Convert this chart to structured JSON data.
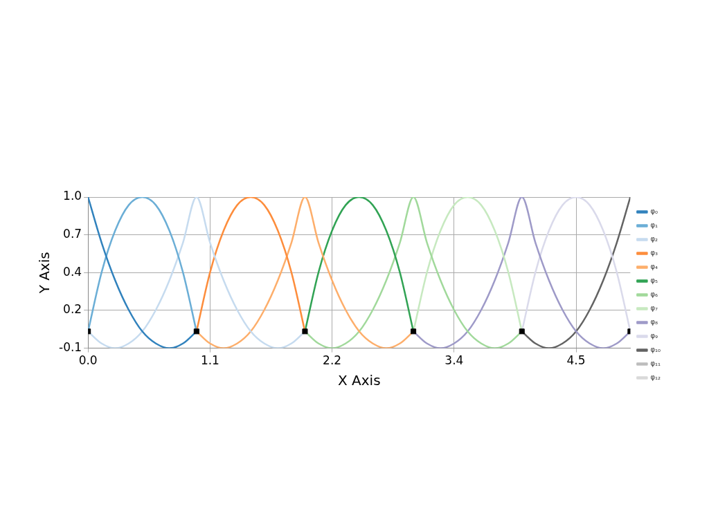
{
  "chart_data": {
    "type": "line",
    "xlabel": "X Axis",
    "ylabel": "Y Axis",
    "xlim": [
      0,
      5
    ],
    "xticks": [
      {
        "value": 0,
        "label": "0.0"
      },
      {
        "value": 1.125,
        "label": "1.1"
      },
      {
        "value": 2.25,
        "label": "2.2"
      },
      {
        "value": 3.375,
        "label": "3.4"
      },
      {
        "value": 4.5,
        "label": "4.5"
      }
    ],
    "ylim": [
      -0.125,
      1
    ],
    "yticks": [
      {
        "value": -0.125,
        "label": "-0.1"
      },
      {
        "value": 0.15625,
        "label": "0.2"
      },
      {
        "value": 0.4375,
        "label": "0.4"
      },
      {
        "value": 0.71875,
        "label": "0.7"
      },
      {
        "value": 1,
        "label": "1.0"
      }
    ],
    "grid": true,
    "legend": "right",
    "series": [
      {
        "name": "φ₀",
        "color": "#3182bd",
        "x": [
          0,
          0.125,
          0.25,
          0.375,
          0.5,
          0.625,
          0.75,
          0.875,
          1
        ],
        "values": [
          1,
          0.66,
          0.38,
          0.16,
          0,
          -0.09,
          -0.125,
          -0.09,
          0
        ]
      },
      {
        "name": "φ₁",
        "color": "#6baed6",
        "x": [
          0,
          0.125,
          0.25,
          0.375,
          0.5,
          0.625,
          0.75,
          0.875,
          1
        ],
        "values": [
          0,
          0.44,
          0.75,
          0.94,
          1,
          0.94,
          0.75,
          0.44,
          0
        ]
      },
      {
        "name": "φ₂",
        "color": "#c6dbef",
        "x": [
          0,
          0.125,
          0.25,
          0.375,
          0.5,
          0.625,
          0.75,
          0.875,
          1,
          1.125,
          1.25,
          1.375,
          1.5,
          1.625,
          1.75,
          1.875,
          2
        ],
        "values": [
          0,
          -0.09,
          -0.125,
          -0.09,
          0,
          0.16,
          0.38,
          0.66,
          1,
          0.66,
          0.38,
          0.16,
          0,
          -0.09,
          -0.125,
          -0.09,
          0
        ]
      },
      {
        "name": "φ₃",
        "color": "#fd8d3c",
        "x": [
          1,
          1.125,
          1.25,
          1.375,
          1.5,
          1.625,
          1.75,
          1.875,
          2
        ],
        "values": [
          0,
          0.44,
          0.75,
          0.94,
          1,
          0.94,
          0.75,
          0.44,
          0
        ]
      },
      {
        "name": "φ₄",
        "color": "#fdae6b",
        "x": [
          1,
          1.125,
          1.25,
          1.375,
          1.5,
          1.625,
          1.75,
          1.875,
          2,
          2.125,
          2.25,
          2.375,
          2.5,
          2.625,
          2.75,
          2.875,
          3
        ],
        "values": [
          0,
          -0.09,
          -0.125,
          -0.09,
          0,
          0.16,
          0.38,
          0.66,
          1,
          0.66,
          0.38,
          0.16,
          0,
          -0.09,
          -0.125,
          -0.09,
          0
        ]
      },
      {
        "name": "φ₅",
        "color": "#31a354",
        "x": [
          2,
          2.125,
          2.25,
          2.375,
          2.5,
          2.625,
          2.75,
          2.875,
          3
        ],
        "values": [
          0,
          0.44,
          0.75,
          0.94,
          1,
          0.94,
          0.75,
          0.44,
          0
        ]
      },
      {
        "name": "φ₆",
        "color": "#a1d99b",
        "x": [
          2,
          2.125,
          2.25,
          2.375,
          2.5,
          2.625,
          2.75,
          2.875,
          3,
          3.125,
          3.25,
          3.375,
          3.5,
          3.625,
          3.75,
          3.875,
          4
        ],
        "values": [
          0,
          -0.09,
          -0.125,
          -0.09,
          0,
          0.16,
          0.38,
          0.66,
          1,
          0.66,
          0.38,
          0.16,
          0,
          -0.09,
          -0.125,
          -0.09,
          0
        ]
      },
      {
        "name": "φ₇",
        "color": "#c7e9c0",
        "x": [
          3,
          3.125,
          3.25,
          3.375,
          3.5,
          3.625,
          3.75,
          3.875,
          4
        ],
        "values": [
          0,
          0.44,
          0.75,
          0.94,
          1,
          0.94,
          0.75,
          0.44,
          0
        ]
      },
      {
        "name": "φ₈",
        "color": "#9e9ac8",
        "x": [
          3,
          3.125,
          3.25,
          3.375,
          3.5,
          3.625,
          3.75,
          3.875,
          4,
          4.125,
          4.25,
          4.375,
          4.5,
          4.625,
          4.75,
          4.875,
          5
        ],
        "values": [
          0,
          -0.09,
          -0.125,
          -0.09,
          0,
          0.16,
          0.38,
          0.66,
          1,
          0.66,
          0.38,
          0.16,
          0,
          -0.09,
          -0.125,
          -0.09,
          0
        ]
      },
      {
        "name": "φ₉",
        "color": "#dadaeb",
        "x": [
          4,
          4.125,
          4.25,
          4.375,
          4.5,
          4.625,
          4.75,
          4.875,
          5
        ],
        "values": [
          0,
          0.44,
          0.75,
          0.94,
          1,
          0.94,
          0.75,
          0.44,
          0
        ]
      },
      {
        "name": "φ₁₀",
        "color": "#636363",
        "x": [
          4,
          4.125,
          4.25,
          4.375,
          4.5,
          4.625,
          4.75,
          4.875,
          5
        ],
        "values": [
          0,
          -0.09,
          -0.125,
          -0.09,
          0,
          0.16,
          0.38,
          0.66,
          1
        ]
      },
      {
        "name": "φ₁₁",
        "color": "#bdbdbd"
      },
      {
        "name": "φ₁₂",
        "color": "#d9d9d9"
      },
      {
        "type": "scatter",
        "marker": "square",
        "color": "#000000",
        "x": [
          0,
          1,
          2,
          3,
          4,
          5
        ],
        "values": [
          0,
          0,
          0,
          0,
          0,
          0
        ]
      }
    ]
  }
}
